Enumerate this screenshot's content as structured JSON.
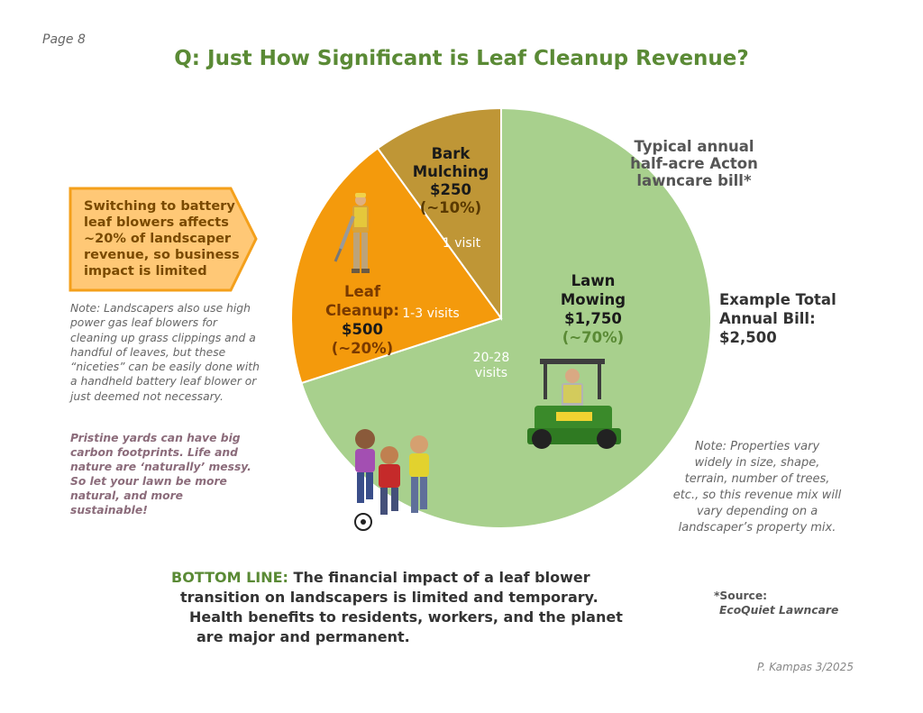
{
  "page_number": "Page 8",
  "chart_data": {
    "type": "pie",
    "title": "Q: Just How Significant is Leaf Cleanup Revenue?",
    "slices": [
      {
        "name_lines": [
          "Lawn",
          "Mowing"
        ],
        "amount": "$1,750",
        "percent_label": "(~70%)",
        "value": 70,
        "visits": [
          "20-28",
          "visits"
        ],
        "color": "#a8d08d"
      },
      {
        "name_lines": [
          "Leaf",
          "Cleanup:"
        ],
        "amount": "$500",
        "percent_label": "(~20%)",
        "value": 20,
        "visits": [
          "1-3 visits"
        ],
        "color": "#f49a0c"
      },
      {
        "name_lines": [
          "Bark",
          "Mulching"
        ],
        "amount": "$250",
        "percent_label": "(~10%)",
        "value": 10,
        "visits": [
          "1 visit"
        ],
        "color": "#bf9636"
      }
    ]
  },
  "callout": {
    "lines": [
      "Switching to battery",
      "leaf blowers affects",
      "~20% of landscaper",
      "revenue, so business",
      "impact is limited"
    ],
    "fill": "#ffc876",
    "stroke": "#f4a01b"
  },
  "note_left": [
    "Note:  Landscapers also use high",
    "power gas leaf blowers for",
    "cleaning up grass clippings and a",
    "handful of leaves, but these",
    "“niceties” can be easily done with",
    "a handheld battery leaf blower or",
    "just deemed not necessary."
  ],
  "pristine": [
    "Pristine yards can have big",
    "carbon footprints. Life and",
    "nature are ‘naturally’ messy.",
    "So let your lawn be more",
    "natural, and more sustainable!"
  ],
  "typical_bill": [
    "Typical annual",
    "half-acre Acton",
    "lawncare bill*"
  ],
  "total_bill": [
    "Example Total",
    "Annual Bill:",
    "$2,500"
  ],
  "note_right": [
    "Note: Properties vary",
    "widely in size, shape,",
    "terrain, number of trees,",
    "etc., so this revenue mix will",
    "vary depending on a",
    "landscaper’s property mix."
  ],
  "bottom_line": {
    "lead": "BOTTOM LINE:",
    "line1": " The financial impact of a leaf blower",
    "line2": "transition on landscapers is limited and temporary.",
    "line3": "Health benefits to residents, workers, and the planet",
    "line4": "are major and permanent."
  },
  "source": {
    "label": "*Source:",
    "name": "EcoQuiet Lawncare"
  },
  "credit": "P. Kampas 3/2025"
}
